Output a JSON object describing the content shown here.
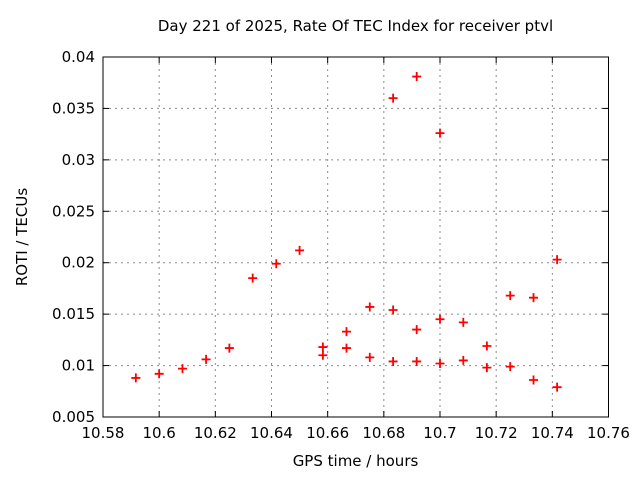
{
  "title": "Day 221 of 2025, Rate Of TEC Index for receiver ptvl",
  "chart_data": {
    "type": "scatter",
    "title": "Day 221 of 2025, Rate Of TEC Index for receiver ptvl",
    "xlabel": "GPS time / hours",
    "ylabel": "ROTI / TECUs",
    "xlim": [
      10.58,
      10.76
    ],
    "ylim": [
      0.005,
      0.04
    ],
    "xticks": [
      10.58,
      10.6,
      10.62,
      10.64,
      10.66,
      10.68,
      10.7,
      10.72,
      10.74,
      10.76
    ],
    "xtick_labels": [
      "10.58",
      "10.6",
      "10.62",
      "10.64",
      "10.66",
      "10.68",
      "10.7",
      "10.72",
      "10.74",
      "10.76"
    ],
    "yticks": [
      0.005,
      0.01,
      0.015,
      0.02,
      0.025,
      0.03,
      0.035,
      0.04
    ],
    "ytick_labels": [
      "0.005",
      "0.01",
      "0.015",
      "0.02",
      "0.025",
      "0.03",
      "0.035",
      "0.04"
    ],
    "grid": true,
    "legend": "none",
    "marker": {
      "shape": "plus",
      "color": "#ff0000",
      "size": 9
    },
    "points": [
      [
        10.5917,
        0.0088
      ],
      [
        10.6,
        0.0092
      ],
      [
        10.6083,
        0.0097
      ],
      [
        10.6167,
        0.0106
      ],
      [
        10.625,
        0.0117
      ],
      [
        10.6333,
        0.0185
      ],
      [
        10.6417,
        0.0199
      ],
      [
        10.65,
        0.0212
      ],
      [
        10.6583,
        0.011
      ],
      [
        10.6583,
        0.0118
      ],
      [
        10.6667,
        0.0117
      ],
      [
        10.6667,
        0.0133
      ],
      [
        10.675,
        0.0108
      ],
      [
        10.675,
        0.0157
      ],
      [
        10.6833,
        0.0104
      ],
      [
        10.6833,
        0.0154
      ],
      [
        10.6833,
        0.036
      ],
      [
        10.6917,
        0.0104
      ],
      [
        10.6917,
        0.0135
      ],
      [
        10.6917,
        0.0381
      ],
      [
        10.7,
        0.0102
      ],
      [
        10.7,
        0.0145
      ],
      [
        10.7,
        0.0326
      ],
      [
        10.7083,
        0.0105
      ],
      [
        10.7083,
        0.0142
      ],
      [
        10.7167,
        0.0098
      ],
      [
        10.7167,
        0.0119
      ],
      [
        10.725,
        0.0099
      ],
      [
        10.725,
        0.0168
      ],
      [
        10.7333,
        0.0086
      ],
      [
        10.7333,
        0.0166
      ],
      [
        10.7417,
        0.0079
      ],
      [
        10.7417,
        0.0203
      ]
    ]
  }
}
